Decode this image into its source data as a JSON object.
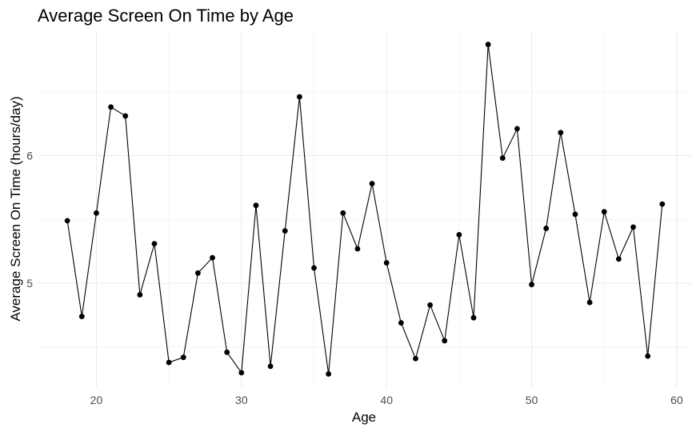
{
  "chart_data": {
    "type": "line",
    "title": "Average Screen On Time by Age",
    "xlabel": "Age",
    "ylabel": "Average Screen On Time (hours/day)",
    "xlim": [
      15.95,
      61.05
    ],
    "ylim": [
      4.18,
      6.98
    ],
    "x_ticks": [
      20,
      30,
      40,
      50,
      60
    ],
    "y_ticks": [
      5,
      6
    ],
    "grid": true,
    "legend": "none",
    "series": [
      {
        "x": [
          18,
          19,
          20,
          21,
          22,
          23,
          24,
          25,
          26,
          27,
          28,
          29,
          30,
          31,
          32,
          33,
          34,
          35,
          36,
          37,
          38,
          39,
          40,
          41,
          42,
          43,
          44,
          45,
          46,
          47,
          48,
          49,
          50,
          51,
          52,
          53,
          54,
          55,
          56,
          57,
          58,
          59
        ],
        "y": [
          5.49,
          4.74,
          5.55,
          6.38,
          6.31,
          4.91,
          5.31,
          4.38,
          4.42,
          5.08,
          5.2,
          4.46,
          4.3,
          5.61,
          4.35,
          5.41,
          6.46,
          5.12,
          4.29,
          5.55,
          5.27,
          5.78,
          5.16,
          4.69,
          4.41,
          4.83,
          4.55,
          5.38,
          4.73,
          6.87,
          5.98,
          6.21,
          4.99,
          5.43,
          6.18,
          5.54,
          4.85,
          5.56,
          5.19,
          5.44,
          4.43,
          5.62
        ]
      }
    ]
  }
}
